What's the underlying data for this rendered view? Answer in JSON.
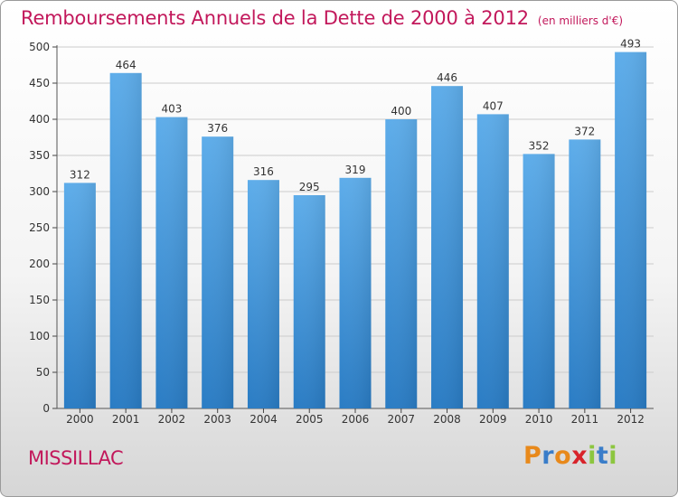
{
  "header": {
    "title": "Remboursements Annuels de la Dette de 2000 à 2012",
    "unit": "(en milliers d'€)"
  },
  "footer": {
    "commune": "MISSILLAC",
    "logo_text": "Proxiti",
    "logo_colors": [
      "#e8891b",
      "#3a7dc9",
      "#e8891b",
      "#d8232a",
      "#8cc63f",
      "#3a7dc9",
      "#8cc63f"
    ]
  },
  "colors": {
    "bar": "#3f95dc",
    "bar_light": "#5eadea",
    "bar_dark": "#2a7cc4",
    "title": "#c2185b",
    "grid": "#cccccc"
  },
  "chart_data": {
    "type": "bar",
    "categories": [
      "2000",
      "2001",
      "2002",
      "2003",
      "2004",
      "2005",
      "2006",
      "2007",
      "2008",
      "2009",
      "2010",
      "2011",
      "2012"
    ],
    "values": [
      312,
      464,
      403,
      376,
      316,
      295,
      319,
      400,
      446,
      407,
      352,
      372,
      493
    ],
    "ylim": [
      0,
      500
    ],
    "yticks": [
      0,
      50,
      100,
      150,
      200,
      250,
      300,
      350,
      400,
      450,
      500
    ],
    "grid": true,
    "data_labels": true
  }
}
